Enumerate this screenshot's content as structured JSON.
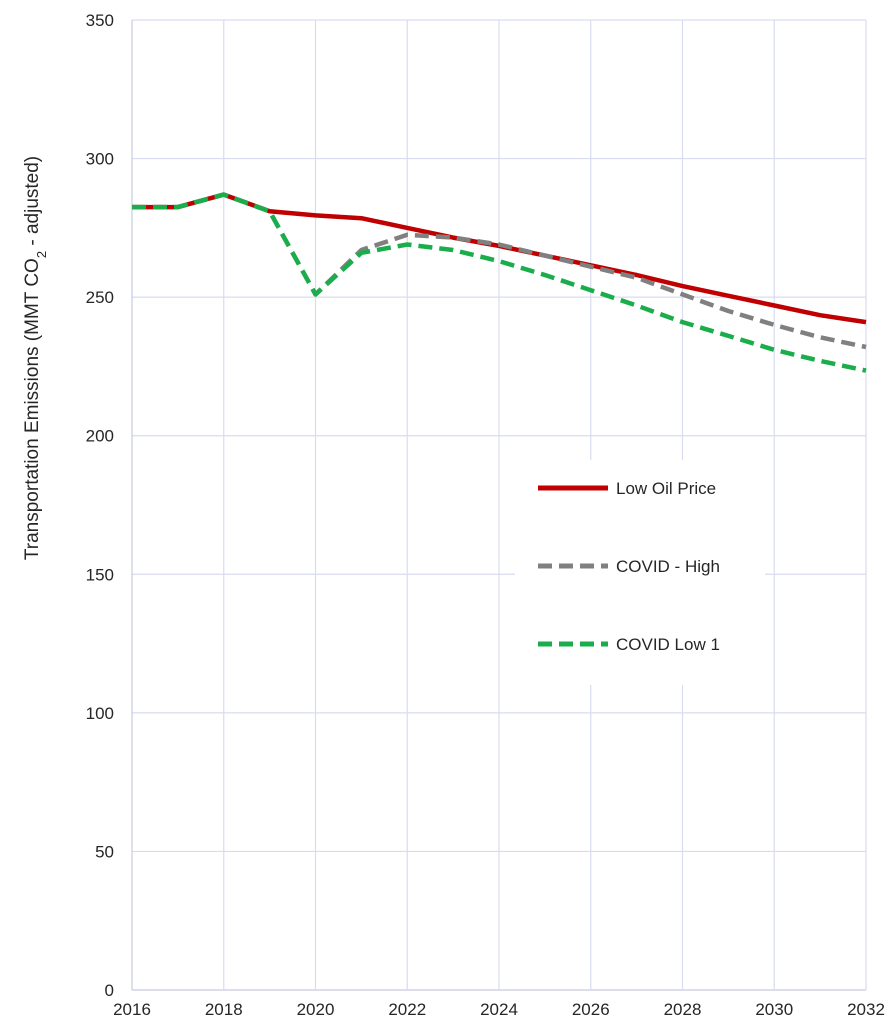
{
  "chart_data": {
    "type": "line",
    "title": "",
    "xlabel": "",
    "ylabel": {
      "prefix": "Transportation Emissions (MMT CO",
      "subscript": "2",
      "suffix": " - adjusted)"
    },
    "xlim": [
      2016,
      2032
    ],
    "ylim": [
      0,
      350
    ],
    "x_ticks": [
      "2016",
      "2018",
      "2020",
      "2022",
      "2024",
      "2026",
      "2028",
      "2030",
      "2032"
    ],
    "y_ticks": [
      "0",
      "50",
      "100",
      "150",
      "200",
      "250",
      "300",
      "350"
    ],
    "grid": true,
    "legend_position": "center-right",
    "x": [
      2016,
      2017,
      2018,
      2019,
      2020,
      2021,
      2022,
      2023,
      2024,
      2025,
      2026,
      2027,
      2028,
      2029,
      2030,
      2031,
      2032
    ],
    "series": [
      {
        "name": "Low Oil Price",
        "color": "#c00000",
        "style": "solid",
        "values": [
          282.5,
          282.5,
          287,
          281,
          279.5,
          278.5,
          275,
          271.5,
          268.5,
          265,
          261.5,
          258,
          254,
          250.5,
          247,
          243.5,
          241
        ]
      },
      {
        "name": "COVID - High",
        "color": "#808080",
        "style": "dashed",
        "values": [
          282.5,
          282.5,
          287,
          281,
          251,
          267,
          272.5,
          271.5,
          269,
          265,
          261,
          257,
          251,
          245,
          240,
          235.5,
          232
        ]
      },
      {
        "name": "COVID Low 1",
        "color": "#1aad4b",
        "style": "dashed",
        "values": [
          282.5,
          282.5,
          287,
          281,
          251,
          266,
          269,
          267,
          263,
          258,
          252.5,
          247,
          241,
          236,
          231,
          227,
          223.5
        ]
      }
    ]
  }
}
